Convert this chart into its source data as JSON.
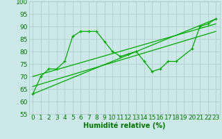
{
  "title": "",
  "xlabel": "Humidité relative (%)",
  "ylabel": "",
  "xlim": [
    -0.5,
    23.5
  ],
  "ylim": [
    55,
    100
  ],
  "yticks": [
    55,
    60,
    65,
    70,
    75,
    80,
    85,
    90,
    95,
    100
  ],
  "xticks": [
    0,
    1,
    2,
    3,
    4,
    5,
    6,
    7,
    8,
    9,
    10,
    11,
    12,
    13,
    14,
    15,
    16,
    17,
    18,
    19,
    20,
    21,
    22,
    23
  ],
  "bg_color": "#cce8e8",
  "grid_color": "#aacccc",
  "line_color": "#00aa00",
  "series1": [
    63,
    70,
    73,
    73,
    76,
    86,
    88,
    88,
    88,
    84,
    80,
    78,
    79,
    80,
    76,
    72,
    73,
    76,
    76,
    null,
    81,
    90,
    91,
    93
  ],
  "trend1_x": [
    0,
    23
  ],
  "trend1_y": [
    63,
    93
  ],
  "trend2_x": [
    0,
    23
  ],
  "trend2_y": [
    70,
    91
  ],
  "trend3_x": [
    0,
    23
  ],
  "trend3_y": [
    66,
    88
  ],
  "font_color": "#007700",
  "font_size_label": 7,
  "font_size_tick": 6.5
}
